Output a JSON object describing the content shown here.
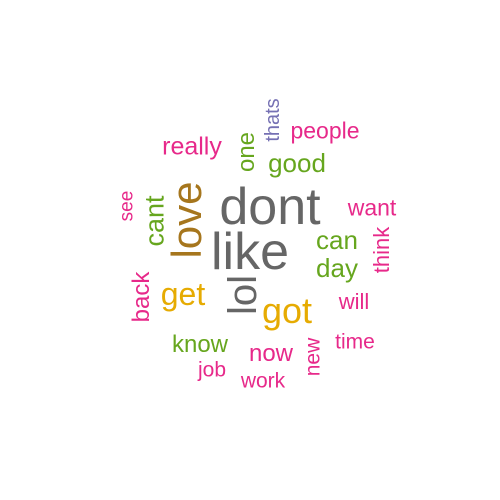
{
  "palette": {
    "gray": "#666666",
    "olive_brown": "#a6761d",
    "gold": "#e6ab02",
    "green": "#66a61e",
    "magenta": "#e7298a",
    "purple": "#7570b3"
  },
  "words": [
    {
      "id": "dont",
      "text": "dont",
      "color": "#666666",
      "orientation": "horizontal"
    },
    {
      "id": "like",
      "text": "like",
      "color": "#666666",
      "orientation": "horizontal"
    },
    {
      "id": "love",
      "text": "love",
      "color": "#a6761d",
      "orientation": "vertical"
    },
    {
      "id": "lol",
      "text": "lol",
      "color": "#666666",
      "orientation": "vertical"
    },
    {
      "id": "got",
      "text": "got",
      "color": "#e6ab02",
      "orientation": "horizontal"
    },
    {
      "id": "get",
      "text": "get",
      "color": "#e6ab02",
      "orientation": "horizontal"
    },
    {
      "id": "cant",
      "text": "cant",
      "color": "#66a61e",
      "orientation": "vertical"
    },
    {
      "id": "good",
      "text": "good",
      "color": "#66a61e",
      "orientation": "horizontal"
    },
    {
      "id": "one",
      "text": "one",
      "color": "#66a61e",
      "orientation": "vertical"
    },
    {
      "id": "can",
      "text": "can",
      "color": "#66a61e",
      "orientation": "horizontal"
    },
    {
      "id": "day",
      "text": "day",
      "color": "#66a61e",
      "orientation": "horizontal"
    },
    {
      "id": "know",
      "text": "know",
      "color": "#66a61e",
      "orientation": "horizontal"
    },
    {
      "id": "now",
      "text": "now",
      "color": "#e7298a",
      "orientation": "horizontal"
    },
    {
      "id": "people",
      "text": "people",
      "color": "#e7298a",
      "orientation": "horizontal"
    },
    {
      "id": "really",
      "text": "really",
      "color": "#e7298a",
      "orientation": "horizontal"
    },
    {
      "id": "want",
      "text": "want",
      "color": "#e7298a",
      "orientation": "horizontal"
    },
    {
      "id": "will",
      "text": "will",
      "color": "#e7298a",
      "orientation": "horizontal"
    },
    {
      "id": "time",
      "text": "time",
      "color": "#e7298a",
      "orientation": "horizontal"
    },
    {
      "id": "work",
      "text": "work",
      "color": "#e7298a",
      "orientation": "horizontal"
    },
    {
      "id": "job",
      "text": "job",
      "color": "#e7298a",
      "orientation": "horizontal"
    },
    {
      "id": "back",
      "text": "back",
      "color": "#e7298a",
      "orientation": "vertical"
    },
    {
      "id": "see",
      "text": "see",
      "color": "#e7298a",
      "orientation": "vertical"
    },
    {
      "id": "new",
      "text": "new",
      "color": "#e7298a",
      "orientation": "vertical"
    },
    {
      "id": "think",
      "text": "think",
      "color": "#e7298a",
      "orientation": "vertical"
    },
    {
      "id": "thats",
      "text": "thats",
      "color": "#7570b3",
      "orientation": "vertical"
    }
  ]
}
